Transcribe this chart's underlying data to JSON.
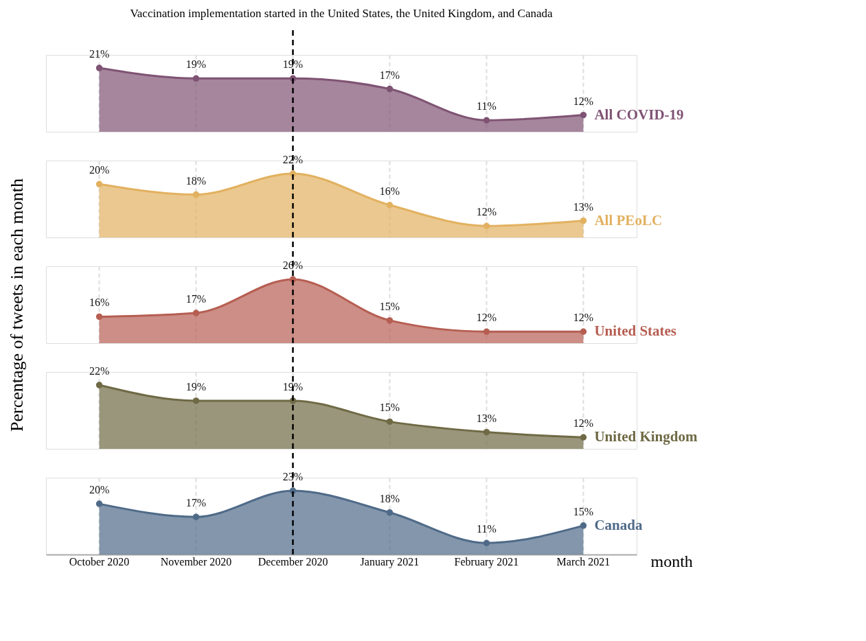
{
  "chart_data": [
    {
      "type": "area",
      "title": "Vaccination implementation started in the United States, the United Kingdom, and Canada",
      "categories": [
        null,
        null,
        null,
        null,
        null,
        null
      ],
      "series": [
        {
          "name": "All COVID-19",
          "color": "#7f5373",
          "values": [
            21,
            19,
            19,
            17,
            11,
            12
          ],
          "value_labels": [
            "21%",
            "19%",
            "19%",
            "17%",
            "11%",
            "12%"
          ]
        }
      ],
      "grid": "x",
      "tick_labels": false,
      "marker": "circle",
      "line_style": "solid"
    },
    {
      "type": "area",
      "categories": [
        null,
        null,
        null,
        null,
        null,
        null
      ],
      "series": [
        {
          "name": "All PEoLC",
          "color": "#e2b160",
          "values": [
            20,
            18,
            22,
            16,
            12,
            13
          ],
          "value_labels": [
            "20%",
            "18%",
            "22%",
            "16%",
            "12%",
            "13%"
          ]
        }
      ],
      "grid": "x",
      "tick_labels": false,
      "marker": "circle",
      "line_style": "solid"
    },
    {
      "type": "area",
      "ylabel": "Percentage of tweets in each month",
      "categories": [
        null,
        null,
        null,
        null,
        null,
        null
      ],
      "series": [
        {
          "name": "United States",
          "color": "#b65e52",
          "values": [
            16,
            17,
            26,
            15,
            12,
            12
          ],
          "value_labels": [
            "16%",
            "17%",
            "26%",
            "15%",
            "12%",
            "12%"
          ]
        }
      ],
      "grid": "x",
      "tick_labels": false,
      "marker": "circle",
      "line_style": "solid"
    },
    {
      "type": "area",
      "categories": [
        null,
        null,
        null,
        null,
        null,
        null
      ],
      "series": [
        {
          "name": "United Kingdom",
          "color": "#6f6a45",
          "values": [
            22,
            19,
            19,
            15,
            13,
            12
          ],
          "value_labels": [
            "22%",
            "19%",
            "19%",
            "15%",
            "13%",
            "12%"
          ]
        }
      ],
      "grid": "x",
      "tick_labels": false,
      "marker": "circle",
      "line_style": "solid"
    },
    {
      "type": "area",
      "xlabel": "month",
      "categories": [
        "October 2020",
        "November 2020",
        "December 2020",
        "January 2021",
        "February 2021",
        "March 2021"
      ],
      "series": [
        {
          "name": "Canada",
          "color": "#4f6a88",
          "values": [
            20,
            17,
            23,
            18,
            11,
            15
          ],
          "value_labels": [
            "20%",
            "17%",
            "23%",
            "18%",
            "11%",
            "15%"
          ]
        }
      ],
      "ref_lines": [
        {
          "axis": "x",
          "value": "December 2020",
          "color": "#000000",
          "line_style": "dashed"
        }
      ],
      "grid": "x",
      "tick_labels": "x",
      "marker": "circle",
      "line_style": "solid"
    }
  ]
}
